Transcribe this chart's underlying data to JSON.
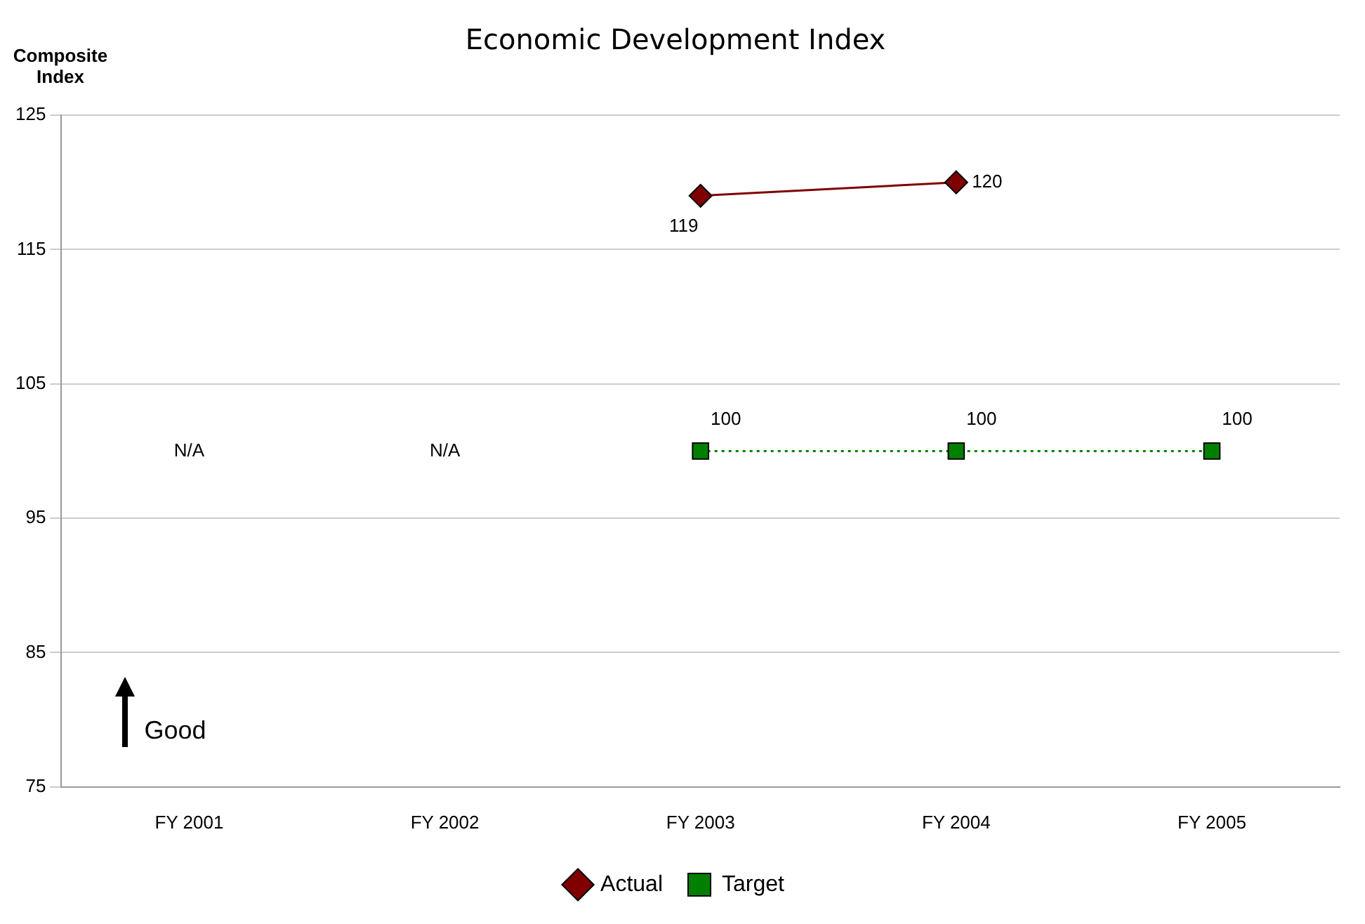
{
  "chart_data": {
    "type": "line",
    "title": "Economic Development Index",
    "ylabel": "Composite Index",
    "categories": [
      "FY 2001",
      "FY 2002",
      "FY 2003",
      "FY 2004",
      "FY 2005"
    ],
    "series": [
      {
        "name": "Actual",
        "color": "#800000",
        "values": [
          null,
          null,
          119,
          120,
          null
        ],
        "value_labels": [
          null,
          null,
          "119",
          "120",
          null
        ],
        "marker": "diamond",
        "line_style": "solid"
      },
      {
        "name": "Target",
        "color": "#008000",
        "values": [
          null,
          null,
          100,
          100,
          100
        ],
        "value_labels": [
          "N/A",
          "N/A",
          "100",
          "100",
          "100"
        ],
        "marker": "square",
        "line_style": "dotted"
      }
    ],
    "ylim": [
      75,
      125
    ],
    "yticks": [
      75,
      85,
      95,
      105,
      115,
      125
    ],
    "grid": "y",
    "legend": "bottom",
    "annotations": [
      "Good"
    ]
  }
}
